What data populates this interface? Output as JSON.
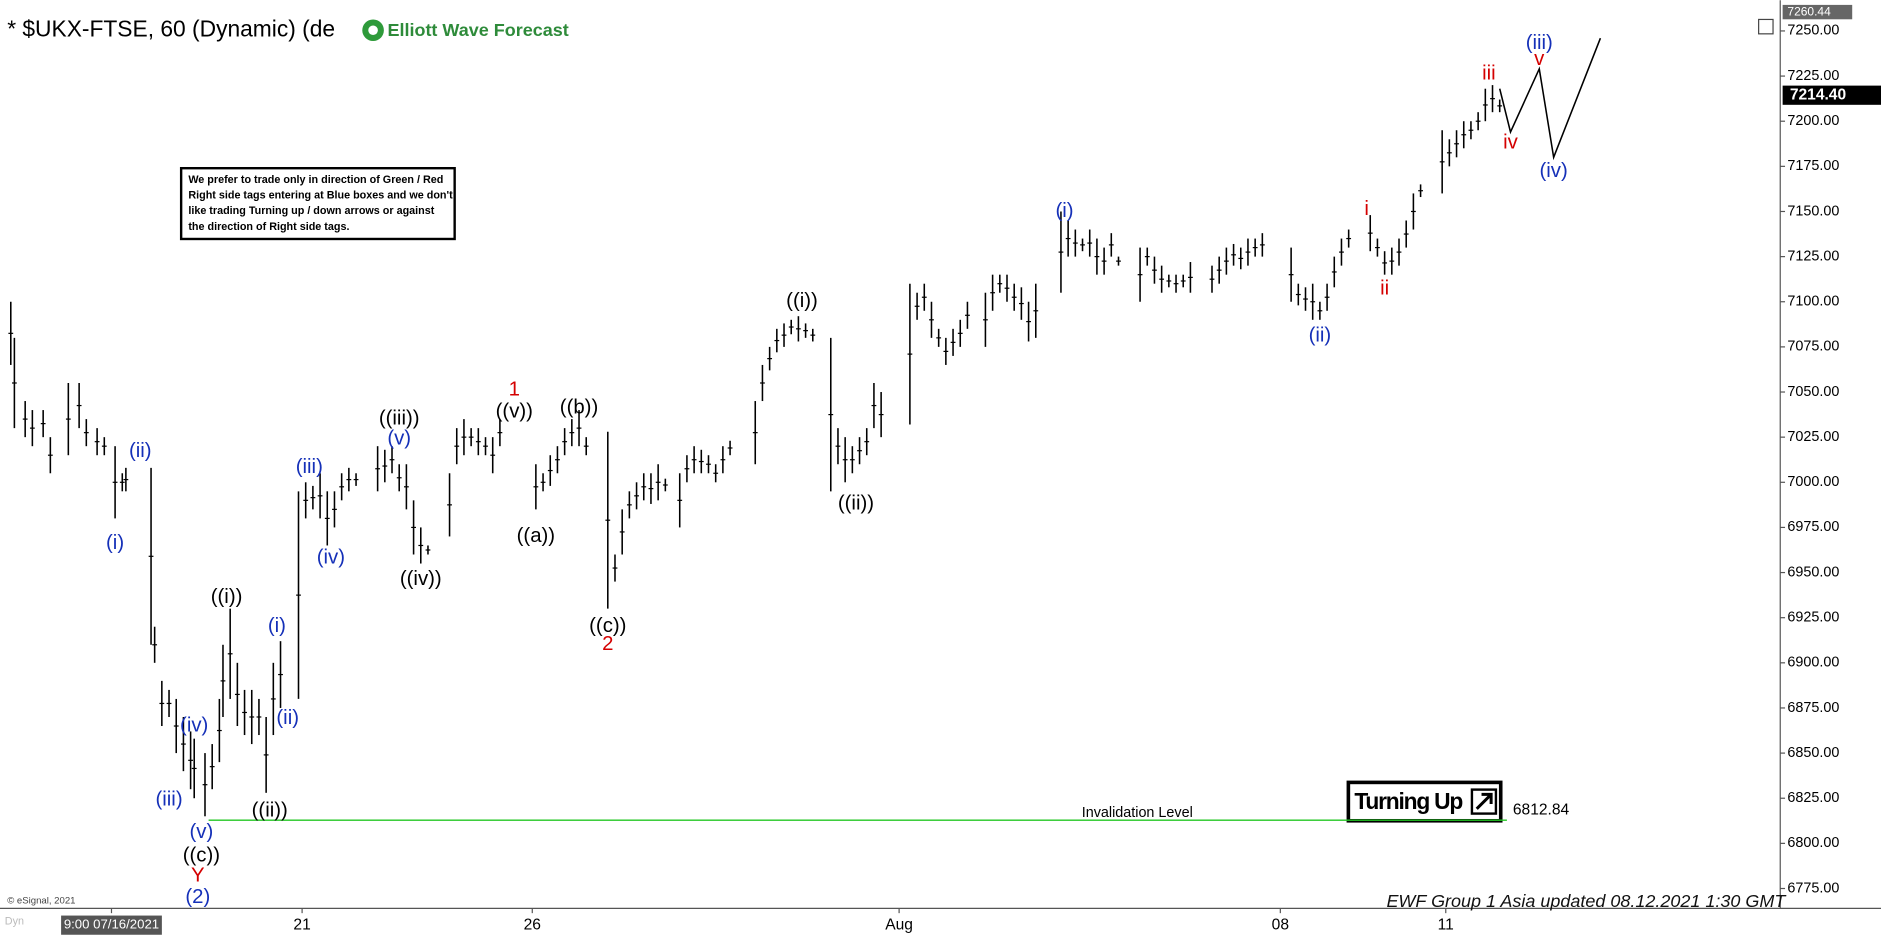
{
  "chart_data": {
    "type": "ohlc",
    "title": "* $UKX-FTSE, 60 (Dynamic) (de",
    "logo": "Elliott Wave Forecast",
    "note": [
      "We prefer to trade only in direction of Green / Red",
      "Right side tags entering at Blue boxes and we don't",
      "like trading Turning up / down arrows or against",
      "the direction of Right side tags."
    ],
    "signal": "Turning Up",
    "footer": "EWF Group 1 Asia updated 08.12.2021 1:30 GMT",
    "copyright": "© eSignal, 2021",
    "corner": "Dyn",
    "color": "#000000",
    "xlim": [
      0,
      495
    ],
    "ylim": [
      6764,
      7267
    ],
    "xticks": [
      {
        "value": 31,
        "label": "9:00 07/16/2021"
      },
      {
        "value": 84,
        "label": "21"
      },
      {
        "value": 148,
        "label": "26"
      },
      {
        "value": 250,
        "label": "Aug"
      },
      {
        "value": 356,
        "label": "08"
      },
      {
        "value": 402,
        "label": "11"
      }
    ],
    "yticks": [
      {
        "value": 6775,
        "label": "6775.00"
      },
      {
        "value": 6800,
        "label": "6800.00"
      },
      {
        "value": 6825,
        "label": "6825.00"
      },
      {
        "value": 6850,
        "label": "6850.00"
      },
      {
        "value": 6875,
        "label": "6875.00"
      },
      {
        "value": 6900,
        "label": "6900.00"
      },
      {
        "value": 6925,
        "label": "6925.00"
      },
      {
        "value": 6950,
        "label": "6950.00"
      },
      {
        "value": 6975,
        "label": "6975.00"
      },
      {
        "value": 7000,
        "label": "7000.00"
      },
      {
        "value": 7025,
        "label": "7025.00"
      },
      {
        "value": 7050,
        "label": "7050.00"
      },
      {
        "value": 7075,
        "label": "7075.00"
      },
      {
        "value": 7100,
        "label": "7100.00"
      },
      {
        "value": 7125,
        "label": "7125.00"
      },
      {
        "value": 7150,
        "label": "7150.00"
      },
      {
        "value": 7175,
        "label": "7175.00"
      },
      {
        "value": 7200,
        "label": "7200.00"
      },
      {
        "value": 7225,
        "label": "7225.00"
      },
      {
        "value": 7250,
        "label": "7250.00"
      }
    ],
    "bars": {
      "x": [
        3,
        4,
        7,
        9,
        12,
        14,
        19,
        22,
        24,
        27,
        29,
        32,
        34,
        35,
        42,
        43,
        45,
        47,
        49,
        51,
        53,
        54,
        57,
        59,
        61,
        62,
        64,
        66,
        68,
        70,
        72,
        74,
        76,
        78,
        83,
        85,
        87,
        89,
        91,
        93,
        95,
        97,
        99,
        105,
        107,
        109,
        111,
        113,
        115,
        117,
        119,
        125,
        127,
        129,
        131,
        133,
        135,
        137,
        139,
        149,
        151,
        153,
        155,
        157,
        159,
        161,
        163,
        169,
        171,
        173,
        175,
        177,
        179,
        181,
        183,
        185,
        189,
        191,
        193,
        195,
        197,
        199,
        201,
        203,
        210,
        212,
        214,
        216,
        218,
        220,
        222,
        224,
        226,
        231,
        233,
        235,
        237,
        239,
        241,
        243,
        245,
        253,
        255,
        257,
        259,
        261,
        263,
        265,
        267,
        269,
        274,
        276,
        278,
        280,
        282,
        284,
        286,
        288,
        295,
        297,
        299,
        301,
        303,
        305,
        307,
        309,
        311,
        317,
        319,
        321,
        323,
        325,
        327,
        329,
        331,
        337,
        339,
        341,
        343,
        345,
        347,
        349,
        351,
        359,
        361,
        363,
        365,
        367,
        369,
        371,
        373,
        375,
        381,
        383,
        385,
        387,
        389,
        391,
        393,
        395,
        401,
        403,
        405,
        407,
        409,
        411,
        413,
        415,
        417
      ],
      "high": [
        7100,
        7080,
        7045,
        7040,
        7040,
        7025,
        7055,
        7055,
        7035,
        7030,
        7025,
        7020,
        7005,
        7008,
        7008,
        6920,
        6890,
        6885,
        6880,
        6870,
        6862,
        6858,
        6850,
        6855,
        6880,
        6910,
        6930,
        6900,
        6885,
        6885,
        6880,
        6870,
        6900,
        6912,
        6995,
        7000,
        6998,
        7005,
        6995,
        6995,
        7005,
        7008,
        7005,
        7020,
        7018,
        7020,
        7010,
        7010,
        6990,
        6975,
        6965,
        7005,
        7030,
        7035,
        7030,
        7030,
        7025,
        7025,
        7035,
        7010,
        7005,
        7015,
        7020,
        7030,
        7035,
        7040,
        7025,
        7028,
        6960,
        6985,
        6995,
        7000,
        7005,
        7005,
        7010,
        7002,
        7005,
        7015,
        7020,
        7018,
        7015,
        7010,
        7020,
        7023,
        7045,
        7065,
        7075,
        7085,
        7088,
        7090,
        7092,
        7088,
        7085,
        7080,
        7030,
        7025,
        7020,
        7025,
        7030,
        7055,
        7050,
        7110,
        7105,
        7110,
        7100,
        7085,
        7080,
        7085,
        7090,
        7100,
        7105,
        7115,
        7115,
        7115,
        7110,
        7108,
        7100,
        7110,
        7150,
        7145,
        7140,
        7135,
        7140,
        7135,
        7130,
        7138,
        7125,
        7130,
        7130,
        7125,
        7120,
        7115,
        7115,
        7115,
        7122,
        7120,
        7125,
        7130,
        7132,
        7130,
        7135,
        7135,
        7138,
        7130,
        7110,
        7108,
        7110,
        7100,
        7110,
        7125,
        7135,
        7140,
        7148,
        7135,
        7128,
        7130,
        7135,
        7145,
        7160,
        7165,
        7195,
        7190,
        7195,
        7200,
        7200,
        7205,
        7218,
        7220,
        7212
      ],
      "low": [
        7065,
        7030,
        7025,
        7020,
        7025,
        7005,
        7015,
        7030,
        7020,
        7015,
        7015,
        6980,
        6995,
        6995,
        6910,
        6900,
        6865,
        6870,
        6850,
        6840,
        6830,
        6825,
        6815,
        6830,
        6845,
        6870,
        6880,
        6865,
        6860,
        6855,
        6860,
        6828,
        6860,
        6875,
        6880,
        6980,
        6985,
        6980,
        6965,
        6975,
        6990,
        6995,
        6998,
        6995,
        7000,
        7005,
        6995,
        6985,
        6960,
        6955,
        6960,
        6970,
        7010,
        7015,
        7020,
        7015,
        7015,
        7005,
        7020,
        6985,
        6995,
        6998,
        7005,
        7015,
        7020,
        7020,
        7015,
        6930,
        6945,
        6960,
        6980,
        6985,
        6990,
        6988,
        6990,
        6995,
        6975,
        7000,
        7005,
        7005,
        7005,
        7000,
        7005,
        7015,
        7010,
        7045,
        7062,
        7072,
        7075,
        7082,
        7078,
        7080,
        7078,
        6995,
        7010,
        7000,
        7005,
        7010,
        7015,
        7030,
        7025,
        7032,
        7090,
        7095,
        7080,
        7075,
        7065,
        7070,
        7075,
        7085,
        7075,
        7095,
        7105,
        7100,
        7095,
        7090,
        7078,
        7080,
        7105,
        7125,
        7125,
        7128,
        7125,
        7115,
        7115,
        7125,
        7120,
        7100,
        7120,
        7110,
        7105,
        7108,
        7105,
        7108,
        7105,
        7105,
        7110,
        7115,
        7120,
        7118,
        7120,
        7125,
        7125,
        7100,
        7098,
        7095,
        7090,
        7090,
        7095,
        7108,
        7120,
        7130,
        7128,
        7125,
        7115,
        7115,
        7120,
        7130,
        7140,
        7158,
        7160,
        7175,
        7180,
        7185,
        7190,
        7195,
        7200,
        7205,
        7205
      ]
    },
    "projection": {
      "x": [
        417,
        420,
        428,
        432,
        445
      ],
      "y": [
        7218,
        7194,
        7229,
        7180,
        7246
      ]
    },
    "invalidation": {
      "value": 6812.84,
      "value_label": "6812.84",
      "label": "Invalidation Level",
      "x": [
        58,
        419
      ],
      "color": "#22c722"
    },
    "last_price": {
      "value": 7214.4,
      "label": "7214.40"
    },
    "high_mark": {
      "value": 7260.44,
      "label": "7260.44"
    },
    "annotations": [
      {
        "text": "(ii)",
        "x": 39,
        "y": 7017,
        "color": "#1530b8"
      },
      {
        "text": "(i)",
        "x": 32,
        "y": 6966,
        "color": "#1530b8"
      },
      {
        "text": "((i))",
        "x": 63,
        "y": 6936,
        "color": "#000000"
      },
      {
        "text": "(i)",
        "x": 77,
        "y": 6920,
        "color": "#1530b8"
      },
      {
        "text": "(ii)",
        "x": 80,
        "y": 6869,
        "color": "#1530b8"
      },
      {
        "text": "(iv)",
        "x": 54,
        "y": 6865,
        "color": "#1530b8"
      },
      {
        "text": "(iii)",
        "x": 47,
        "y": 6824,
        "color": "#1530b8"
      },
      {
        "text": "(v)",
        "x": 56,
        "y": 6806,
        "color": "#1530b8"
      },
      {
        "text": "((c))",
        "x": 56,
        "y": 6793,
        "color": "#000000"
      },
      {
        "text": "Y",
        "x": 55,
        "y": 6782,
        "color": "#d40000"
      },
      {
        "text": "(2)",
        "x": 55,
        "y": 6770,
        "color": "#1530b8"
      },
      {
        "text": "((ii))",
        "x": 75,
        "y": 6818,
        "color": "#000000"
      },
      {
        "text": "(iii)",
        "x": 86,
        "y": 7008,
        "color": "#1530b8"
      },
      {
        "text": "(iv)",
        "x": 92,
        "y": 6958,
        "color": "#1530b8"
      },
      {
        "text": "((iii))",
        "x": 111,
        "y": 7035,
        "color": "#000000"
      },
      {
        "text": "(v)",
        "x": 111,
        "y": 7024,
        "color": "#1530b8"
      },
      {
        "text": "((iv))",
        "x": 117,
        "y": 6946,
        "color": "#000000"
      },
      {
        "text": "1",
        "x": 143,
        "y": 7051,
        "color": "#d40000"
      },
      {
        "text": "((v))",
        "x": 143,
        "y": 7039,
        "color": "#000000"
      },
      {
        "text": "((b))",
        "x": 161,
        "y": 7041,
        "color": "#000000"
      },
      {
        "text": "((a))",
        "x": 149,
        "y": 6970,
        "color": "#000000"
      },
      {
        "text": "((c))",
        "x": 169,
        "y": 6920,
        "color": "#000000"
      },
      {
        "text": "2",
        "x": 169,
        "y": 6910,
        "color": "#d40000"
      },
      {
        "text": "((i))",
        "x": 223,
        "y": 7100,
        "color": "#000000"
      },
      {
        "text": "((ii))",
        "x": 238,
        "y": 6988,
        "color": "#000000"
      },
      {
        "text": "(i)",
        "x": 296,
        "y": 7150,
        "color": "#1530b8"
      },
      {
        "text": "(ii)",
        "x": 367,
        "y": 7081,
        "color": "#1530b8"
      },
      {
        "text": "i",
        "x": 380,
        "y": 7151,
        "color": "#d40000"
      },
      {
        "text": "ii",
        "x": 385,
        "y": 7107,
        "color": "#d40000"
      },
      {
        "text": "iii",
        "x": 414,
        "y": 7226,
        "color": "#d40000"
      },
      {
        "text": "iv",
        "x": 420,
        "y": 7188,
        "color": "#d40000"
      },
      {
        "text": "v",
        "x": 428,
        "y": 7234,
        "color": "#d40000"
      },
      {
        "text": "(iii)",
        "x": 428,
        "y": 7243,
        "color": "#1530b8"
      },
      {
        "text": "(iv)",
        "x": 432,
        "y": 7172,
        "color": "#1530b8"
      }
    ]
  }
}
